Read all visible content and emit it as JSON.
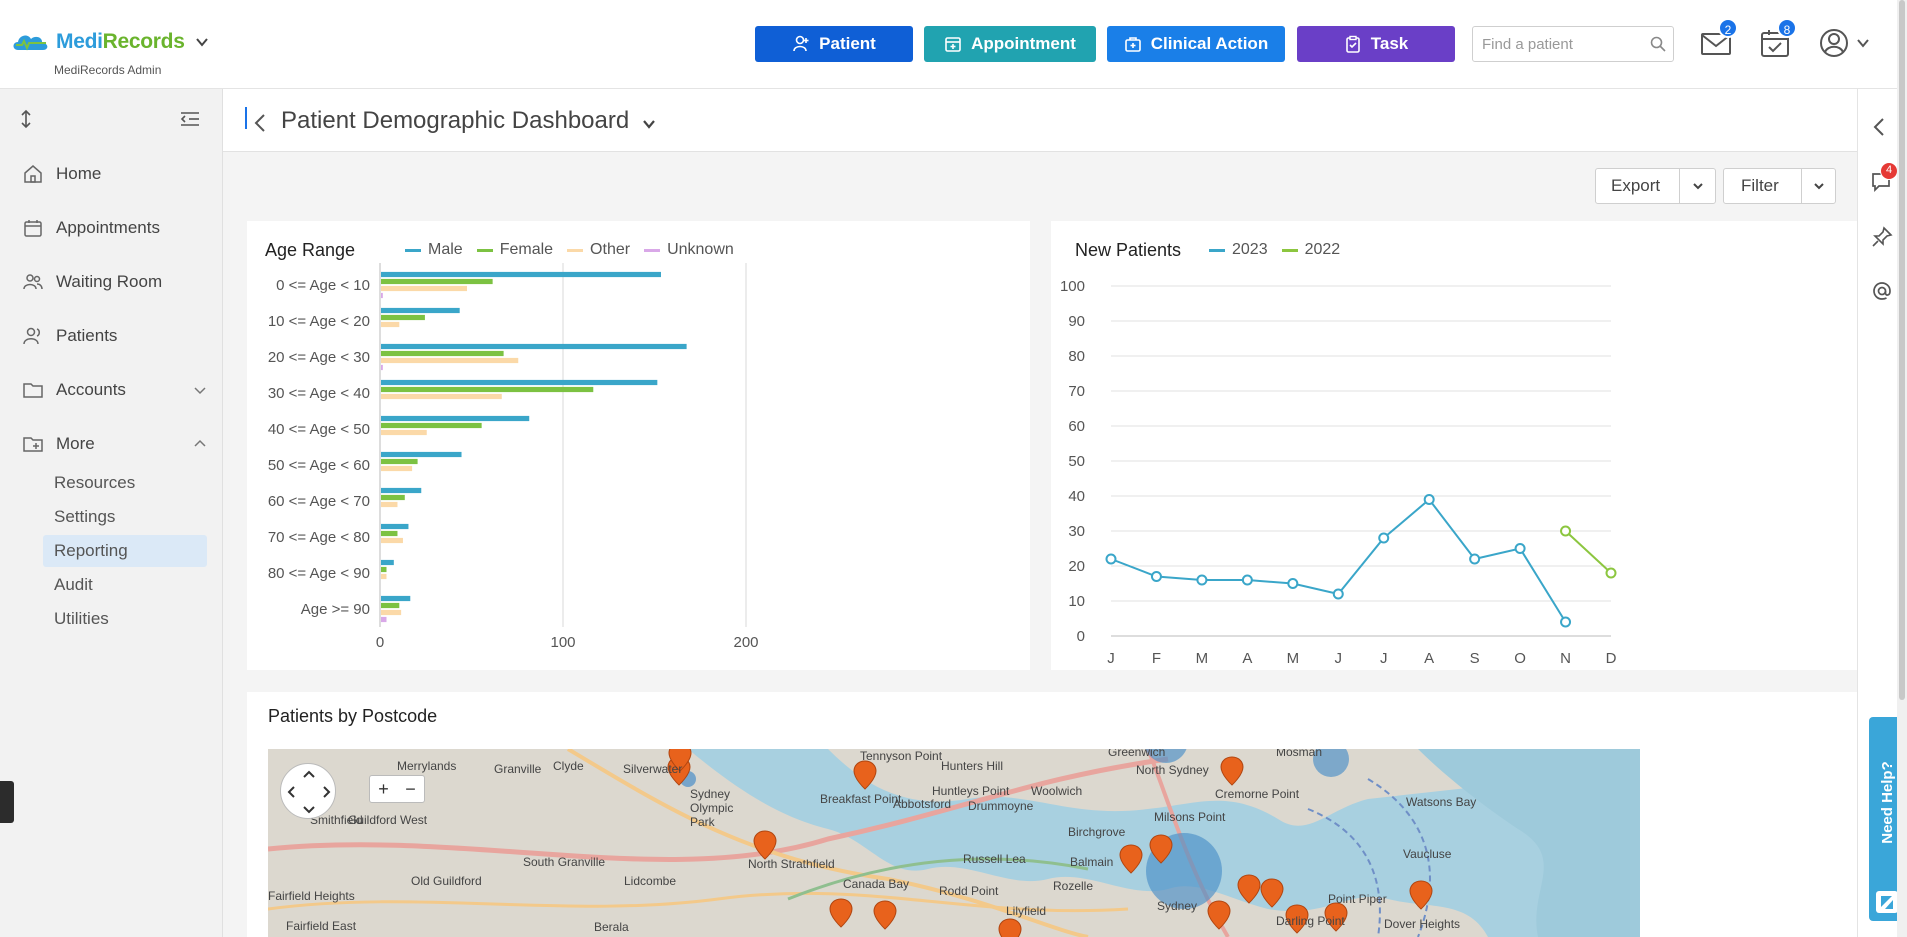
{
  "app": {
    "brand_part1": "Medi",
    "brand_part2": "Records",
    "subtitle": "MediRecords Admin"
  },
  "actions": [
    {
      "label": "Patient",
      "color": "#0f5fd6",
      "icon": "add-person-icon"
    },
    {
      "label": "Appointment",
      "color": "#21a3b0",
      "icon": "calendar-add-icon"
    },
    {
      "label": "Clinical Action",
      "color": "#1a7fe8",
      "icon": "medical-case-icon"
    },
    {
      "label": "Task",
      "color": "#6a3fc7",
      "icon": "clipboard-icon"
    }
  ],
  "search": {
    "placeholder": "Find a patient"
  },
  "badges": {
    "messages": "2",
    "tasks": "8"
  },
  "sidebar": {
    "items": [
      {
        "label": "Home",
        "icon": "home-icon"
      },
      {
        "label": "Appointments",
        "icon": "calendar-icon"
      },
      {
        "label": "Waiting Room",
        "icon": "people-icon"
      },
      {
        "label": "Patients",
        "icon": "person-icon"
      },
      {
        "label": "Accounts",
        "icon": "folder-icon"
      },
      {
        "label": "More",
        "icon": "folder-add-icon"
      }
    ],
    "sub_items": [
      {
        "label": "Resources"
      },
      {
        "label": "Settings"
      },
      {
        "label": "Reporting",
        "active": true
      },
      {
        "label": "Audit"
      },
      {
        "label": "Utilities"
      }
    ]
  },
  "page": {
    "title": "Patient Demographic Dashboard"
  },
  "toolbar": {
    "export_label": "Export",
    "filter_label": "Filter"
  },
  "right_rail": {
    "chat_badge": "4",
    "need_help_label": "Need Help?"
  },
  "map_card": {
    "title": "Patients by Postcode",
    "labels": [
      "Merrylands",
      "Granville",
      "Clyde",
      "Silverwater",
      "Sydney Olympic Park",
      "Breakfast Point",
      "Tennyson Point",
      "Hunters Hill",
      "Greenwich",
      "North Sydney",
      "Mosman",
      "Cremorne Point",
      "Watsons Bay",
      "Smithfield",
      "Guildford West",
      "Huntleys Point",
      "Woolwich",
      "Abbotsford",
      "Drummoyne",
      "Milsons Point",
      "Birchgrove",
      "Vaucluse",
      "South Granville",
      "Old Guildford",
      "North Strathfield",
      "Lidcombe",
      "Russell Lea",
      "Balmain",
      "Canada Bay",
      "Rodd Point",
      "Rozelle",
      "Point Piper",
      "Fairfield Heights",
      "Fairfield East",
      "Berala",
      "Lilyfield",
      "Sydney",
      "Darling Point",
      "Dover Heights"
    ]
  },
  "chart_data": [
    {
      "type": "bar",
      "orientation": "horizontal",
      "title": "Age Range",
      "categories": [
        "0 <= Age < 10",
        "10 <= Age < 20",
        "20 <= Age < 30",
        "30 <= Age < 40",
        "40 <= Age < 50",
        "50 <= Age < 60",
        "60 <= Age < 70",
        "70 <= Age < 80",
        "80 <= Age < 90",
        "Age >= 90"
      ],
      "series": [
        {
          "name": "Male",
          "color": "#3aa6c9",
          "values": [
            153,
            43,
            167,
            151,
            81,
            44,
            22,
            15,
            7,
            16
          ]
        },
        {
          "name": "Female",
          "color": "#7cc242",
          "values": [
            61,
            24,
            67,
            116,
            55,
            20,
            13,
            9,
            3,
            10
          ]
        },
        {
          "name": "Other",
          "color": "#fbd9a8",
          "values": [
            47,
            10,
            75,
            66,
            25,
            17,
            9,
            12,
            3,
            11
          ]
        },
        {
          "name": "Unknown",
          "color": "#d9a8e8",
          "values": [
            1,
            0,
            1,
            0,
            0,
            0,
            0,
            0,
            0,
            3
          ]
        }
      ],
      "xlim": [
        0,
        200
      ],
      "xticks": [
        0,
        100,
        200
      ]
    },
    {
      "type": "line",
      "title": "New Patients",
      "x": [
        "J",
        "F",
        "M",
        "A",
        "M",
        "J",
        "J",
        "A",
        "S",
        "O",
        "N",
        "D"
      ],
      "series": [
        {
          "name": "2023",
          "color": "#3aa6c9",
          "values": [
            22,
            17,
            16,
            16,
            15,
            12,
            28,
            39,
            22,
            25,
            4,
            null
          ]
        },
        {
          "name": "2022",
          "color": "#8cc63f",
          "values": [
            null,
            null,
            null,
            null,
            null,
            null,
            null,
            null,
            null,
            null,
            30,
            18
          ]
        }
      ],
      "ylim": [
        0,
        100
      ],
      "yticks": [
        0,
        10,
        20,
        30,
        40,
        50,
        60,
        70,
        80,
        90,
        100
      ]
    }
  ]
}
